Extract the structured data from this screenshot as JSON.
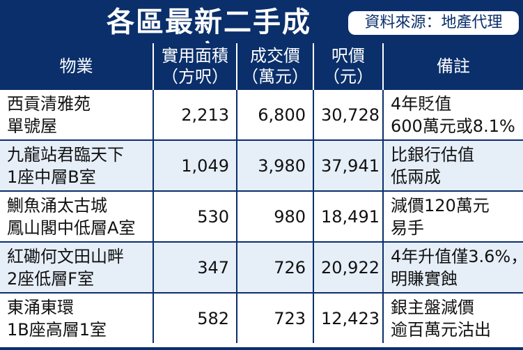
{
  "title": "各區最新二手成交",
  "source": "資料來源：地產代理",
  "columns": [
    {
      "l1": "物業",
      "l2": ""
    },
    {
      "l1": "實用面積",
      "l2": "（方呎）"
    },
    {
      "l1": "成交價",
      "l2": "（萬元）"
    },
    {
      "l1": "呎價",
      "l2": "（元）"
    },
    {
      "l1": "備註",
      "l2": ""
    }
  ],
  "rows": [
    {
      "name1": "西貢清雅苑",
      "name2": "單號屋",
      "area": "2,213",
      "price": "6,800",
      "psf": "30,728",
      "note1": "4年貶值",
      "note2": "600萬元或8.1%"
    },
    {
      "name1": "九龍站君臨天下",
      "name2": "1座中層B室",
      "area": "1,049",
      "price": "3,980",
      "psf": "37,941",
      "note1": "比銀行估值",
      "note2": "低兩成"
    },
    {
      "name1": "鰂魚涌太古城",
      "name2": "鳳山閣中低層A室",
      "area": "530",
      "price": "980",
      "psf": "18,491",
      "note1": "減價120萬元",
      "note2": "易手"
    },
    {
      "name1": "紅磡何文田山畔",
      "name2": "2座低層F室",
      "area": "347",
      "price": "726",
      "psf": "20,922",
      "note1": "4年升值僅3.6%，",
      "note2": "明賺實蝕"
    },
    {
      "name1": "東涌東環",
      "name2": "1B座高層1室",
      "area": "582",
      "price": "723",
      "psf": "12,423",
      "note1": "銀主盤減價",
      "note2": "逾百萬元沽出"
    }
  ]
}
